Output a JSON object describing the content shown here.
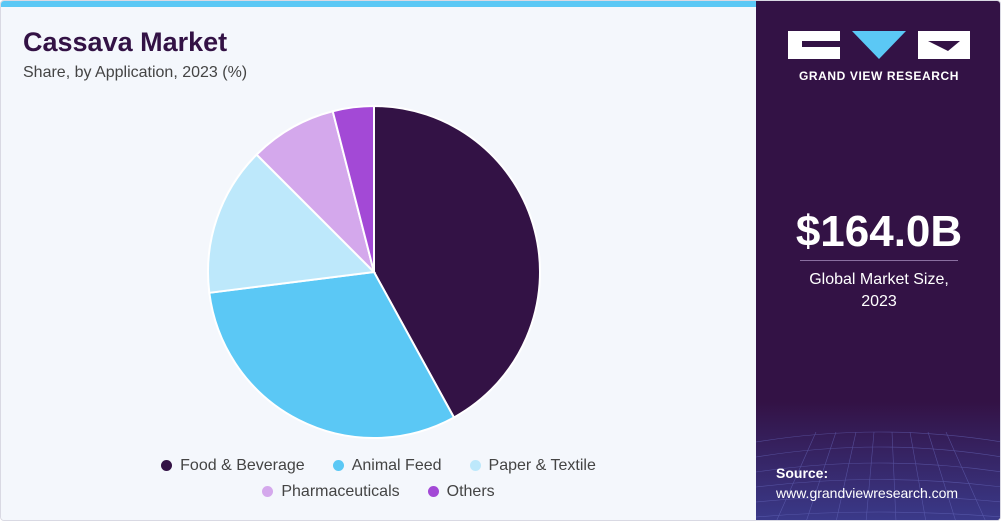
{
  "header": {
    "title": "Cassava Market",
    "subtitle": "Share, by Application, 2023 (%)"
  },
  "chart_data": {
    "type": "pie",
    "title": "Cassava Market",
    "subtitle": "Share, by Application, 2023 (%)",
    "categories": [
      "Food & Beverage",
      "Animal Feed",
      "Paper & Textile",
      "Pharmaceuticals",
      "Others"
    ],
    "values": [
      42.0,
      31.0,
      14.5,
      8.5,
      4.0
    ],
    "colors": [
      "#331245",
      "#5bc8f5",
      "#bde8fb",
      "#d4a8ec",
      "#a349d6"
    ],
    "legend_position": "bottom",
    "start_angle": "top, clockwise"
  },
  "sidebar": {
    "brand": "GRAND VIEW RESEARCH",
    "market_size_value": "$164.0B",
    "market_size_caption_line1": "Global Market Size,",
    "market_size_caption_line2": "2023",
    "source_label": "Source:",
    "source_url": "www.grandviewresearch.com",
    "background_color": "#331245",
    "accent_color": "#5bc8f5"
  }
}
